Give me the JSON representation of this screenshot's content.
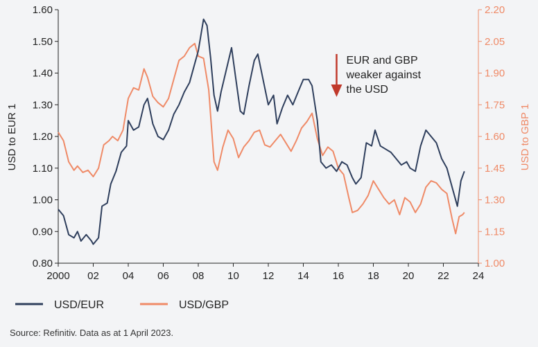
{
  "chart_data": {
    "type": "line",
    "xlabel": "",
    "x_ticks": [
      "2000",
      "02",
      "04",
      "06",
      "08",
      "10",
      "12",
      "14",
      "16",
      "18",
      "20",
      "22",
      "24"
    ],
    "x_range": [
      2000,
      2024
    ],
    "left_axis": {
      "label": "USD to EUR 1",
      "range": [
        0.8,
        1.6
      ],
      "ticks": [
        "0.80",
        "0.90",
        "1.00",
        "1.10",
        "1.20",
        "1.30",
        "1.40",
        "1.50",
        "1.60"
      ],
      "color": "#2e3e5c"
    },
    "right_axis": {
      "label": "USD to GBP 1",
      "range": [
        1.0,
        2.2
      ],
      "ticks": [
        "1.00",
        "1.15",
        "1.30",
        "1.45",
        "1.60",
        "1.75",
        "1.90",
        "2.05",
        "2.20"
      ],
      "color": "#ef8a67"
    },
    "series": [
      {
        "name": "USD/EUR",
        "axis": "left",
        "color": "#2e3e5c",
        "x": [
          2000.0,
          2000.3,
          2000.6,
          2000.9,
          2001.1,
          2001.3,
          2001.6,
          2001.9,
          2002.0,
          2002.3,
          2002.5,
          2002.8,
          2003.0,
          2003.3,
          2003.6,
          2003.9,
          2004.0,
          2004.3,
          2004.6,
          2004.9,
          2005.1,
          2005.4,
          2005.7,
          2006.0,
          2006.3,
          2006.6,
          2006.9,
          2007.2,
          2007.5,
          2007.8,
          2008.0,
          2008.3,
          2008.5,
          2008.7,
          2008.9,
          2009.1,
          2009.3,
          2009.6,
          2009.9,
          2010.1,
          2010.4,
          2010.6,
          2010.9,
          2011.2,
          2011.4,
          2011.7,
          2012.0,
          2012.3,
          2012.5,
          2012.8,
          2013.1,
          2013.4,
          2013.7,
          2014.0,
          2014.3,
          2014.5,
          2014.8,
          2015.0,
          2015.3,
          2015.6,
          2015.9,
          2016.2,
          2016.5,
          2016.8,
          2017.0,
          2017.3,
          2017.6,
          2017.9,
          2018.1,
          2018.4,
          2018.7,
          2019.0,
          2019.3,
          2019.6,
          2019.9,
          2020.1,
          2020.4,
          2020.7,
          2021.0,
          2021.3,
          2021.6,
          2021.9,
          2022.2,
          2022.5,
          2022.8,
          2023.0,
          2023.2
        ],
        "y": [
          0.97,
          0.95,
          0.89,
          0.88,
          0.9,
          0.87,
          0.89,
          0.87,
          0.86,
          0.88,
          0.98,
          0.99,
          1.05,
          1.09,
          1.15,
          1.17,
          1.25,
          1.22,
          1.23,
          1.3,
          1.32,
          1.24,
          1.2,
          1.19,
          1.22,
          1.27,
          1.3,
          1.34,
          1.37,
          1.43,
          1.47,
          1.57,
          1.55,
          1.45,
          1.33,
          1.28,
          1.34,
          1.41,
          1.48,
          1.4,
          1.28,
          1.27,
          1.36,
          1.44,
          1.46,
          1.38,
          1.3,
          1.33,
          1.24,
          1.29,
          1.33,
          1.3,
          1.34,
          1.38,
          1.38,
          1.36,
          1.25,
          1.12,
          1.1,
          1.11,
          1.09,
          1.12,
          1.11,
          1.07,
          1.05,
          1.07,
          1.18,
          1.17,
          1.22,
          1.17,
          1.16,
          1.15,
          1.13,
          1.11,
          1.12,
          1.1,
          1.09,
          1.17,
          1.22,
          1.2,
          1.18,
          1.13,
          1.1,
          1.04,
          0.98,
          1.06,
          1.09
        ]
      },
      {
        "name": "USD/GBP",
        "axis": "right",
        "color": "#ef8a67",
        "x": [
          2000.0,
          2000.3,
          2000.6,
          2000.9,
          2001.1,
          2001.4,
          2001.7,
          2002.0,
          2002.3,
          2002.6,
          2002.9,
          2003.1,
          2003.4,
          2003.7,
          2004.0,
          2004.3,
          2004.6,
          2004.9,
          2005.1,
          2005.4,
          2005.7,
          2006.0,
          2006.3,
          2006.6,
          2006.9,
          2007.2,
          2007.5,
          2007.8,
          2008.0,
          2008.3,
          2008.6,
          2008.9,
          2009.1,
          2009.4,
          2009.7,
          2010.0,
          2010.3,
          2010.6,
          2010.9,
          2011.2,
          2011.5,
          2011.8,
          2012.1,
          2012.4,
          2012.7,
          2013.0,
          2013.3,
          2013.6,
          2013.9,
          2014.2,
          2014.5,
          2014.8,
          2015.1,
          2015.4,
          2015.7,
          2016.0,
          2016.3,
          2016.6,
          2016.8,
          2017.1,
          2017.4,
          2017.7,
          2018.0,
          2018.3,
          2018.6,
          2018.9,
          2019.2,
          2019.5,
          2019.8,
          2020.1,
          2020.4,
          2020.7,
          2021.0,
          2021.3,
          2021.6,
          2021.9,
          2022.2,
          2022.5,
          2022.7,
          2022.9,
          2023.1,
          2023.2
        ],
        "y": [
          1.62,
          1.58,
          1.48,
          1.44,
          1.46,
          1.43,
          1.44,
          1.41,
          1.45,
          1.56,
          1.58,
          1.6,
          1.58,
          1.63,
          1.78,
          1.83,
          1.82,
          1.92,
          1.88,
          1.79,
          1.76,
          1.74,
          1.78,
          1.87,
          1.96,
          1.98,
          2.02,
          2.04,
          1.98,
          1.97,
          1.82,
          1.48,
          1.44,
          1.55,
          1.63,
          1.59,
          1.5,
          1.55,
          1.58,
          1.62,
          1.63,
          1.56,
          1.55,
          1.58,
          1.61,
          1.57,
          1.53,
          1.58,
          1.64,
          1.67,
          1.71,
          1.59,
          1.51,
          1.55,
          1.53,
          1.45,
          1.42,
          1.31,
          1.24,
          1.25,
          1.28,
          1.32,
          1.39,
          1.35,
          1.31,
          1.28,
          1.3,
          1.23,
          1.31,
          1.29,
          1.24,
          1.28,
          1.36,
          1.39,
          1.38,
          1.35,
          1.33,
          1.21,
          1.14,
          1.22,
          1.23,
          1.24
        ]
      }
    ],
    "annotation": {
      "text_lines": [
        "EUR and GBP",
        "weaker against",
        "the USD"
      ],
      "arrow_color": "#c0392b",
      "arrow_x": 2015.9
    },
    "grid": false,
    "legend": {
      "placement": "bottom-left"
    },
    "source": "Source: Refinitiv. Data as at 1 April 2023."
  }
}
